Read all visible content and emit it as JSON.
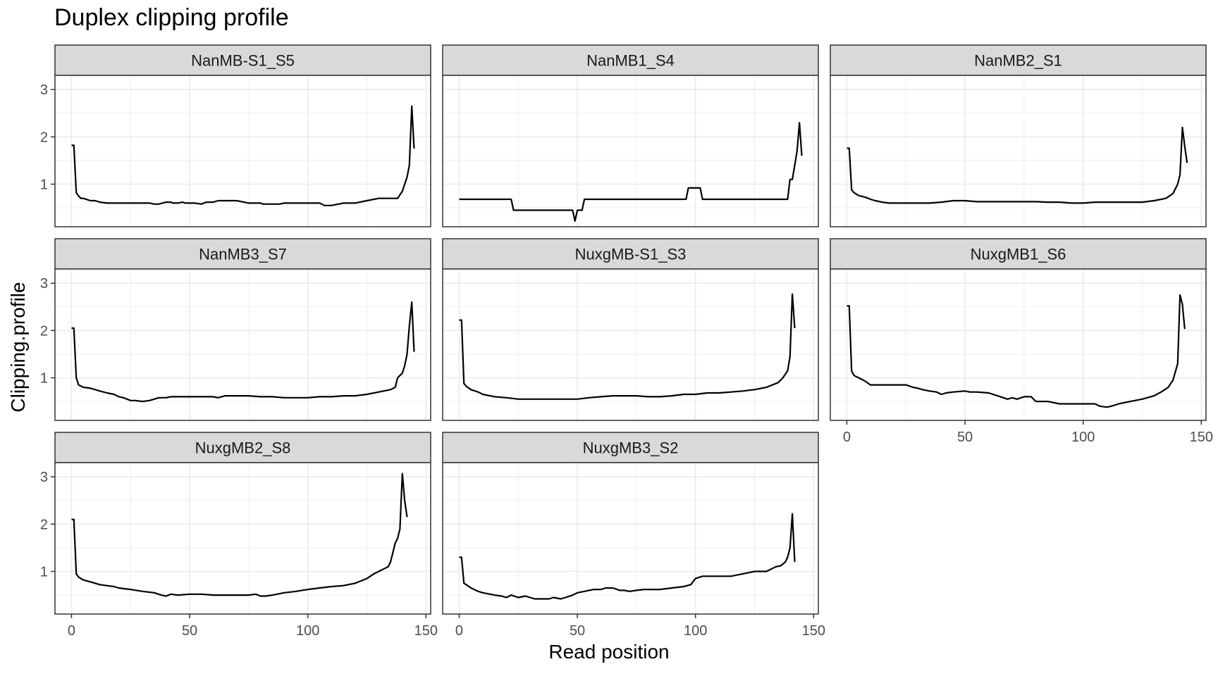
{
  "chart_data": {
    "type": "line",
    "title": "Duplex clipping profile",
    "xlabel": "Read position",
    "ylabel": "Clipping.profile",
    "xlim": [
      -7,
      152
    ],
    "ylim": [
      0.1,
      3.3
    ],
    "xticks": [
      0,
      50,
      100,
      150
    ],
    "yticks": [
      1,
      2,
      3
    ],
    "grid": true,
    "facets": [
      {
        "name": "NanMB-S1_S5",
        "x": [
          0,
          1,
          2,
          3,
          4,
          5,
          8,
          10,
          12,
          15,
          18,
          20,
          22,
          24,
          25,
          27,
          30,
          33,
          35,
          37,
          40,
          42,
          43,
          45,
          47,
          48,
          50,
          52,
          55,
          57,
          60,
          62,
          65,
          70,
          75,
          80,
          81,
          83,
          85,
          88,
          90,
          95,
          100,
          105,
          107,
          110,
          115,
          117,
          120,
          125,
          130,
          135,
          138,
          140,
          142,
          143,
          144,
          145
        ],
        "y": [
          1.82,
          1.82,
          0.82,
          0.75,
          0.7,
          0.7,
          0.65,
          0.65,
          0.62,
          0.6,
          0.6,
          0.6,
          0.6,
          0.6,
          0.6,
          0.6,
          0.6,
          0.6,
          0.58,
          0.58,
          0.62,
          0.62,
          0.6,
          0.6,
          0.62,
          0.6,
          0.6,
          0.6,
          0.58,
          0.62,
          0.62,
          0.65,
          0.65,
          0.65,
          0.6,
          0.6,
          0.58,
          0.58,
          0.58,
          0.58,
          0.6,
          0.6,
          0.6,
          0.6,
          0.55,
          0.55,
          0.6,
          0.6,
          0.6,
          0.65,
          0.7,
          0.7,
          0.7,
          0.85,
          1.15,
          1.4,
          2.65,
          1.75
        ]
      },
      {
        "name": "NanMB1_S4",
        "x": [
          0,
          10,
          20,
          22,
          23,
          30,
          40,
          48,
          49,
          50,
          52,
          53,
          55,
          60,
          70,
          80,
          90,
          96,
          97,
          98,
          99,
          102,
          103,
          105,
          110,
          120,
          130,
          139,
          140,
          141,
          142,
          143,
          144,
          145
        ],
        "y": [
          0.68,
          0.68,
          0.68,
          0.68,
          0.45,
          0.45,
          0.45,
          0.45,
          0.22,
          0.45,
          0.45,
          0.68,
          0.68,
          0.68,
          0.68,
          0.68,
          0.68,
          0.68,
          0.92,
          0.92,
          0.92,
          0.92,
          0.68,
          0.68,
          0.68,
          0.68,
          0.68,
          0.68,
          1.1,
          1.1,
          1.4,
          1.7,
          2.3,
          1.6
        ]
      },
      {
        "name": "NanMB2_S1",
        "x": [
          0,
          1,
          2,
          3,
          5,
          8,
          10,
          12,
          15,
          18,
          20,
          25,
          30,
          35,
          40,
          45,
          50,
          55,
          60,
          65,
          70,
          75,
          80,
          85,
          90,
          95,
          100,
          105,
          110,
          115,
          120,
          125,
          130,
          135,
          138,
          140,
          141,
          142,
          143,
          144
        ],
        "y": [
          1.76,
          1.76,
          0.88,
          0.82,
          0.76,
          0.72,
          0.68,
          0.65,
          0.62,
          0.6,
          0.6,
          0.6,
          0.6,
          0.6,
          0.62,
          0.65,
          0.65,
          0.63,
          0.63,
          0.63,
          0.63,
          0.63,
          0.63,
          0.62,
          0.62,
          0.6,
          0.6,
          0.62,
          0.62,
          0.62,
          0.62,
          0.62,
          0.65,
          0.7,
          0.8,
          1.0,
          1.2,
          2.2,
          1.8,
          1.45
        ]
      },
      {
        "name": "NanMB3_S7",
        "x": [
          0,
          1,
          2,
          3,
          5,
          8,
          10,
          12,
          15,
          18,
          20,
          22,
          25,
          27,
          30,
          33,
          35,
          37,
          40,
          42,
          45,
          50,
          55,
          60,
          62,
          65,
          70,
          75,
          80,
          85,
          90,
          95,
          100,
          105,
          110,
          115,
          120,
          125,
          130,
          135,
          137,
          138,
          140,
          141,
          142,
          143,
          144,
          145
        ],
        "y": [
          2.05,
          2.05,
          1.0,
          0.85,
          0.8,
          0.78,
          0.75,
          0.72,
          0.68,
          0.65,
          0.6,
          0.58,
          0.52,
          0.52,
          0.5,
          0.52,
          0.55,
          0.58,
          0.58,
          0.6,
          0.6,
          0.6,
          0.6,
          0.6,
          0.58,
          0.62,
          0.62,
          0.62,
          0.6,
          0.6,
          0.58,
          0.58,
          0.58,
          0.6,
          0.6,
          0.62,
          0.62,
          0.65,
          0.7,
          0.75,
          0.8,
          1.0,
          1.1,
          1.25,
          1.5,
          2.1,
          2.6,
          1.55
        ]
      },
      {
        "name": "NuxgMB-S1_S3",
        "x": [
          0,
          1,
          2,
          3,
          5,
          8,
          10,
          15,
          20,
          25,
          30,
          35,
          40,
          45,
          50,
          55,
          60,
          65,
          70,
          75,
          80,
          85,
          90,
          95,
          100,
          105,
          110,
          115,
          120,
          125,
          130,
          135,
          137,
          139,
          140,
          141,
          142
        ],
        "y": [
          2.22,
          2.22,
          0.88,
          0.82,
          0.75,
          0.7,
          0.65,
          0.6,
          0.58,
          0.55,
          0.55,
          0.55,
          0.55,
          0.55,
          0.55,
          0.58,
          0.6,
          0.62,
          0.62,
          0.62,
          0.6,
          0.6,
          0.62,
          0.65,
          0.65,
          0.68,
          0.68,
          0.7,
          0.72,
          0.75,
          0.8,
          0.9,
          1.0,
          1.15,
          1.45,
          2.77,
          2.05
        ]
      },
      {
        "name": "NuxgMB1_S6",
        "x": [
          0,
          1,
          2,
          3,
          5,
          7,
          8,
          10,
          15,
          20,
          25,
          28,
          30,
          32,
          35,
          38,
          40,
          42,
          45,
          50,
          52,
          55,
          60,
          65,
          68,
          70,
          72,
          75,
          78,
          80,
          85,
          90,
          95,
          100,
          105,
          107,
          110,
          112,
          115,
          120,
          125,
          130,
          133,
          136,
          138,
          140,
          141,
          142,
          143
        ],
        "y": [
          2.52,
          2.52,
          1.15,
          1.05,
          1.0,
          0.95,
          0.92,
          0.85,
          0.85,
          0.85,
          0.85,
          0.8,
          0.78,
          0.75,
          0.72,
          0.7,
          0.65,
          0.68,
          0.7,
          0.72,
          0.7,
          0.7,
          0.68,
          0.6,
          0.55,
          0.58,
          0.55,
          0.6,
          0.6,
          0.5,
          0.5,
          0.45,
          0.45,
          0.45,
          0.45,
          0.4,
          0.38,
          0.4,
          0.45,
          0.5,
          0.55,
          0.62,
          0.7,
          0.8,
          0.95,
          1.3,
          2.75,
          2.55,
          2.03
        ]
      },
      {
        "name": "NuxgMB2_S8",
        "x": [
          0,
          1,
          2,
          3,
          5,
          8,
          10,
          12,
          15,
          18,
          20,
          25,
          30,
          35,
          38,
          40,
          42,
          45,
          50,
          55,
          60,
          65,
          70,
          75,
          78,
          80,
          82,
          85,
          90,
          95,
          100,
          105,
          110,
          115,
          120,
          125,
          128,
          130,
          132,
          134,
          135,
          136,
          137,
          138,
          139,
          140,
          141,
          142
        ],
        "y": [
          2.1,
          2.1,
          0.95,
          0.88,
          0.82,
          0.78,
          0.75,
          0.72,
          0.7,
          0.68,
          0.65,
          0.62,
          0.58,
          0.55,
          0.5,
          0.48,
          0.52,
          0.5,
          0.52,
          0.52,
          0.5,
          0.5,
          0.5,
          0.5,
          0.52,
          0.48,
          0.48,
          0.5,
          0.55,
          0.58,
          0.62,
          0.65,
          0.68,
          0.7,
          0.75,
          0.85,
          0.95,
          1.0,
          1.05,
          1.1,
          1.2,
          1.4,
          1.6,
          1.7,
          1.9,
          3.07,
          2.5,
          2.15
        ]
      },
      {
        "name": "NuxgMB3_S2",
        "x": [
          0,
          1,
          2,
          3,
          5,
          8,
          10,
          15,
          18,
          20,
          22,
          25,
          28,
          30,
          32,
          35,
          38,
          40,
          43,
          45,
          48,
          50,
          55,
          57,
          60,
          62,
          65,
          68,
          70,
          72,
          75,
          78,
          80,
          85,
          90,
          95,
          98,
          100,
          103,
          105,
          110,
          115,
          120,
          125,
          130,
          132,
          134,
          136,
          138,
          139,
          140,
          141,
          142
        ],
        "y": [
          1.3,
          1.3,
          0.75,
          0.72,
          0.65,
          0.58,
          0.55,
          0.5,
          0.48,
          0.45,
          0.5,
          0.45,
          0.48,
          0.45,
          0.42,
          0.42,
          0.42,
          0.45,
          0.42,
          0.45,
          0.5,
          0.55,
          0.6,
          0.62,
          0.62,
          0.65,
          0.65,
          0.6,
          0.6,
          0.58,
          0.6,
          0.62,
          0.62,
          0.62,
          0.65,
          0.68,
          0.72,
          0.85,
          0.9,
          0.9,
          0.9,
          0.9,
          0.95,
          1.0,
          1.0,
          1.05,
          1.1,
          1.12,
          1.2,
          1.3,
          1.5,
          2.22,
          1.2
        ]
      }
    ]
  }
}
